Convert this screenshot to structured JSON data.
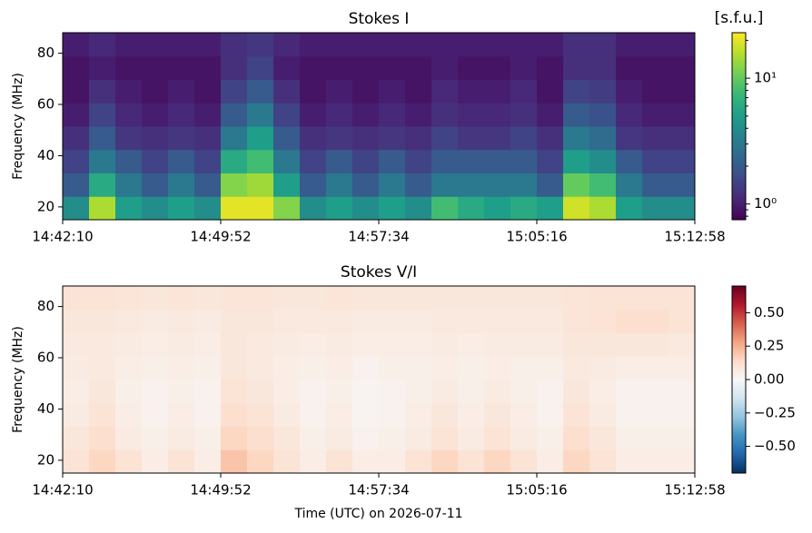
{
  "chart_data": [
    {
      "type": "heatmap",
      "title": "Stokes I",
      "ylabel": "Frequency (MHz)",
      "xlim": [
        52930,
        54778
      ],
      "xticks": [
        {
          "value": 52930,
          "label": "14:42:10"
        },
        {
          "value": 53392,
          "label": "14:49:52"
        },
        {
          "value": 53854,
          "label": "14:57:34"
        },
        {
          "value": 54316,
          "label": "15:05:16"
        },
        {
          "value": 54778,
          "label": "15:12:58"
        }
      ],
      "ylim": [
        15,
        88
      ],
      "yticks": [
        20,
        40,
        60,
        80
      ],
      "colormap": "viridis",
      "colorbar": {
        "label": "[s.f.u.]",
        "log": true,
        "lim": [
          0.75,
          23
        ],
        "ticks": [
          {
            "value": 1,
            "label": "10⁰"
          },
          {
            "value": 10,
            "label": "10¹"
          }
        ]
      },
      "z": [
        [
          4,
          15,
          5,
          4,
          5,
          4,
          20,
          20,
          12,
          4,
          5,
          4,
          5,
          4,
          8,
          6,
          5,
          6,
          5,
          18,
          15,
          5,
          4,
          4
        ],
        [
          2,
          6,
          3,
          2,
          3,
          2,
          12,
          14,
          5,
          2,
          3,
          2,
          3,
          2,
          3,
          3,
          3,
          3,
          2,
          10,
          8,
          3,
          2,
          2
        ],
        [
          1.5,
          3,
          2,
          1.5,
          2,
          1.5,
          6,
          8,
          3,
          1.5,
          2,
          1.5,
          2,
          1.5,
          2,
          2,
          2,
          2,
          1.5,
          5,
          4,
          2,
          1.5,
          1.5
        ],
        [
          1.2,
          2,
          1.3,
          1.2,
          1.3,
          1.2,
          3,
          5,
          2,
          1.2,
          1.3,
          1.2,
          1.3,
          1.2,
          1.5,
          1.3,
          1.3,
          1.5,
          1.2,
          3,
          2.5,
          1.3,
          1.2,
          1.2
        ],
        [
          1,
          1.5,
          1.1,
          1,
          1.1,
          1,
          2,
          3,
          1.5,
          1,
          1.1,
          1,
          1.1,
          1,
          1.2,
          1.1,
          1.1,
          1.2,
          1,
          2,
          1.8,
          1.1,
          1,
          1
        ],
        [
          0.9,
          1.2,
          1,
          0.9,
          1,
          0.9,
          1.5,
          2,
          1.2,
          0.9,
          1,
          0.9,
          1,
          0.9,
          1.1,
          1,
          1,
          1.1,
          0.9,
          1.5,
          1.4,
          1,
          0.9,
          0.9
        ],
        [
          0.9,
          1,
          0.9,
          0.9,
          0.9,
          0.9,
          1.2,
          1.5,
          1,
          0.9,
          0.9,
          0.9,
          0.9,
          0.9,
          1,
          0.9,
          0.9,
          1,
          0.9,
          1.2,
          1.2,
          0.9,
          0.9,
          0.9
        ],
        [
          1,
          1.1,
          1,
          1,
          1,
          1,
          1.2,
          1.3,
          1.1,
          1,
          1,
          1,
          1,
          1,
          1,
          1,
          1,
          1,
          1,
          1.2,
          1.2,
          1,
          1,
          1
        ]
      ]
    },
    {
      "type": "heatmap",
      "title": "Stokes V/I",
      "ylabel": "Frequency (MHz)",
      "xlabel": "Time (UTC) on 2026-07-11",
      "xlim": [
        52930,
        54778
      ],
      "xticks": [
        {
          "value": 52930,
          "label": "14:42:10"
        },
        {
          "value": 53392,
          "label": "14:49:52"
        },
        {
          "value": 53854,
          "label": "14:57:34"
        },
        {
          "value": 54316,
          "label": "15:05:16"
        },
        {
          "value": 54778,
          "label": "15:12:58"
        }
      ],
      "ylim": [
        15,
        88
      ],
      "yticks": [
        20,
        40,
        60,
        80
      ],
      "colormap": "RdBu_r",
      "colorbar": {
        "log": false,
        "lim": [
          -0.7,
          0.7
        ],
        "ticks": [
          {
            "value": 0.5,
            "label": "0.50"
          },
          {
            "value": 0.25,
            "label": "0.25"
          },
          {
            "value": 0,
            "label": "0.00"
          },
          {
            "value": -0.25,
            "label": "−0.25"
          },
          {
            "value": -0.5,
            "label": "−0.50"
          }
        ]
      },
      "z": [
        [
          0.1,
          0.15,
          0.1,
          0.05,
          0.1,
          0.05,
          0.2,
          0.15,
          0.1,
          0.05,
          0.1,
          0.05,
          0.05,
          0.1,
          0.15,
          0.1,
          0.15,
          0.1,
          0.05,
          0.15,
          0.1,
          0.05,
          0.05,
          0.05
        ],
        [
          0.08,
          0.12,
          0.06,
          0.04,
          0.06,
          0.04,
          0.15,
          0.12,
          0.08,
          0.04,
          0.06,
          0.03,
          0.04,
          0.06,
          0.1,
          0.06,
          0.1,
          0.06,
          0.04,
          0.12,
          0.08,
          0.04,
          0.04,
          0.04
        ],
        [
          0.06,
          0.1,
          0.05,
          0.03,
          0.05,
          0.03,
          0.12,
          0.1,
          0.06,
          0.03,
          0.05,
          0.02,
          0.03,
          0.05,
          0.08,
          0.05,
          0.08,
          0.05,
          0.03,
          0.1,
          0.06,
          0.03,
          0.03,
          0.03
        ],
        [
          0.05,
          0.08,
          0.04,
          0.03,
          0.04,
          0.03,
          0.1,
          0.08,
          0.05,
          0.03,
          0.04,
          0.02,
          0.03,
          0.04,
          0.06,
          0.04,
          0.06,
          0.04,
          0.03,
          0.08,
          0.05,
          0.03,
          0.03,
          0.03
        ],
        [
          0.06,
          0.07,
          0.05,
          0.04,
          0.05,
          0.04,
          0.08,
          0.07,
          0.05,
          0.04,
          0.05,
          0.03,
          0.04,
          0.04,
          0.05,
          0.04,
          0.05,
          0.04,
          0.04,
          0.07,
          0.06,
          0.05,
          0.05,
          0.05
        ],
        [
          0.07,
          0.07,
          0.06,
          0.05,
          0.06,
          0.05,
          0.08,
          0.07,
          0.06,
          0.05,
          0.06,
          0.05,
          0.05,
          0.05,
          0.06,
          0.05,
          0.06,
          0.06,
          0.06,
          0.08,
          0.08,
          0.08,
          0.08,
          0.07
        ],
        [
          0.08,
          0.08,
          0.07,
          0.06,
          0.07,
          0.06,
          0.08,
          0.08,
          0.07,
          0.07,
          0.07,
          0.06,
          0.06,
          0.06,
          0.07,
          0.07,
          0.07,
          0.07,
          0.07,
          0.09,
          0.1,
          0.12,
          0.12,
          0.1
        ],
        [
          0.1,
          0.1,
          0.09,
          0.08,
          0.09,
          0.08,
          0.09,
          0.09,
          0.08,
          0.08,
          0.09,
          0.08,
          0.08,
          0.08,
          0.08,
          0.08,
          0.08,
          0.08,
          0.08,
          0.09,
          0.1,
          0.1,
          0.1,
          0.1
        ]
      ]
    }
  ]
}
